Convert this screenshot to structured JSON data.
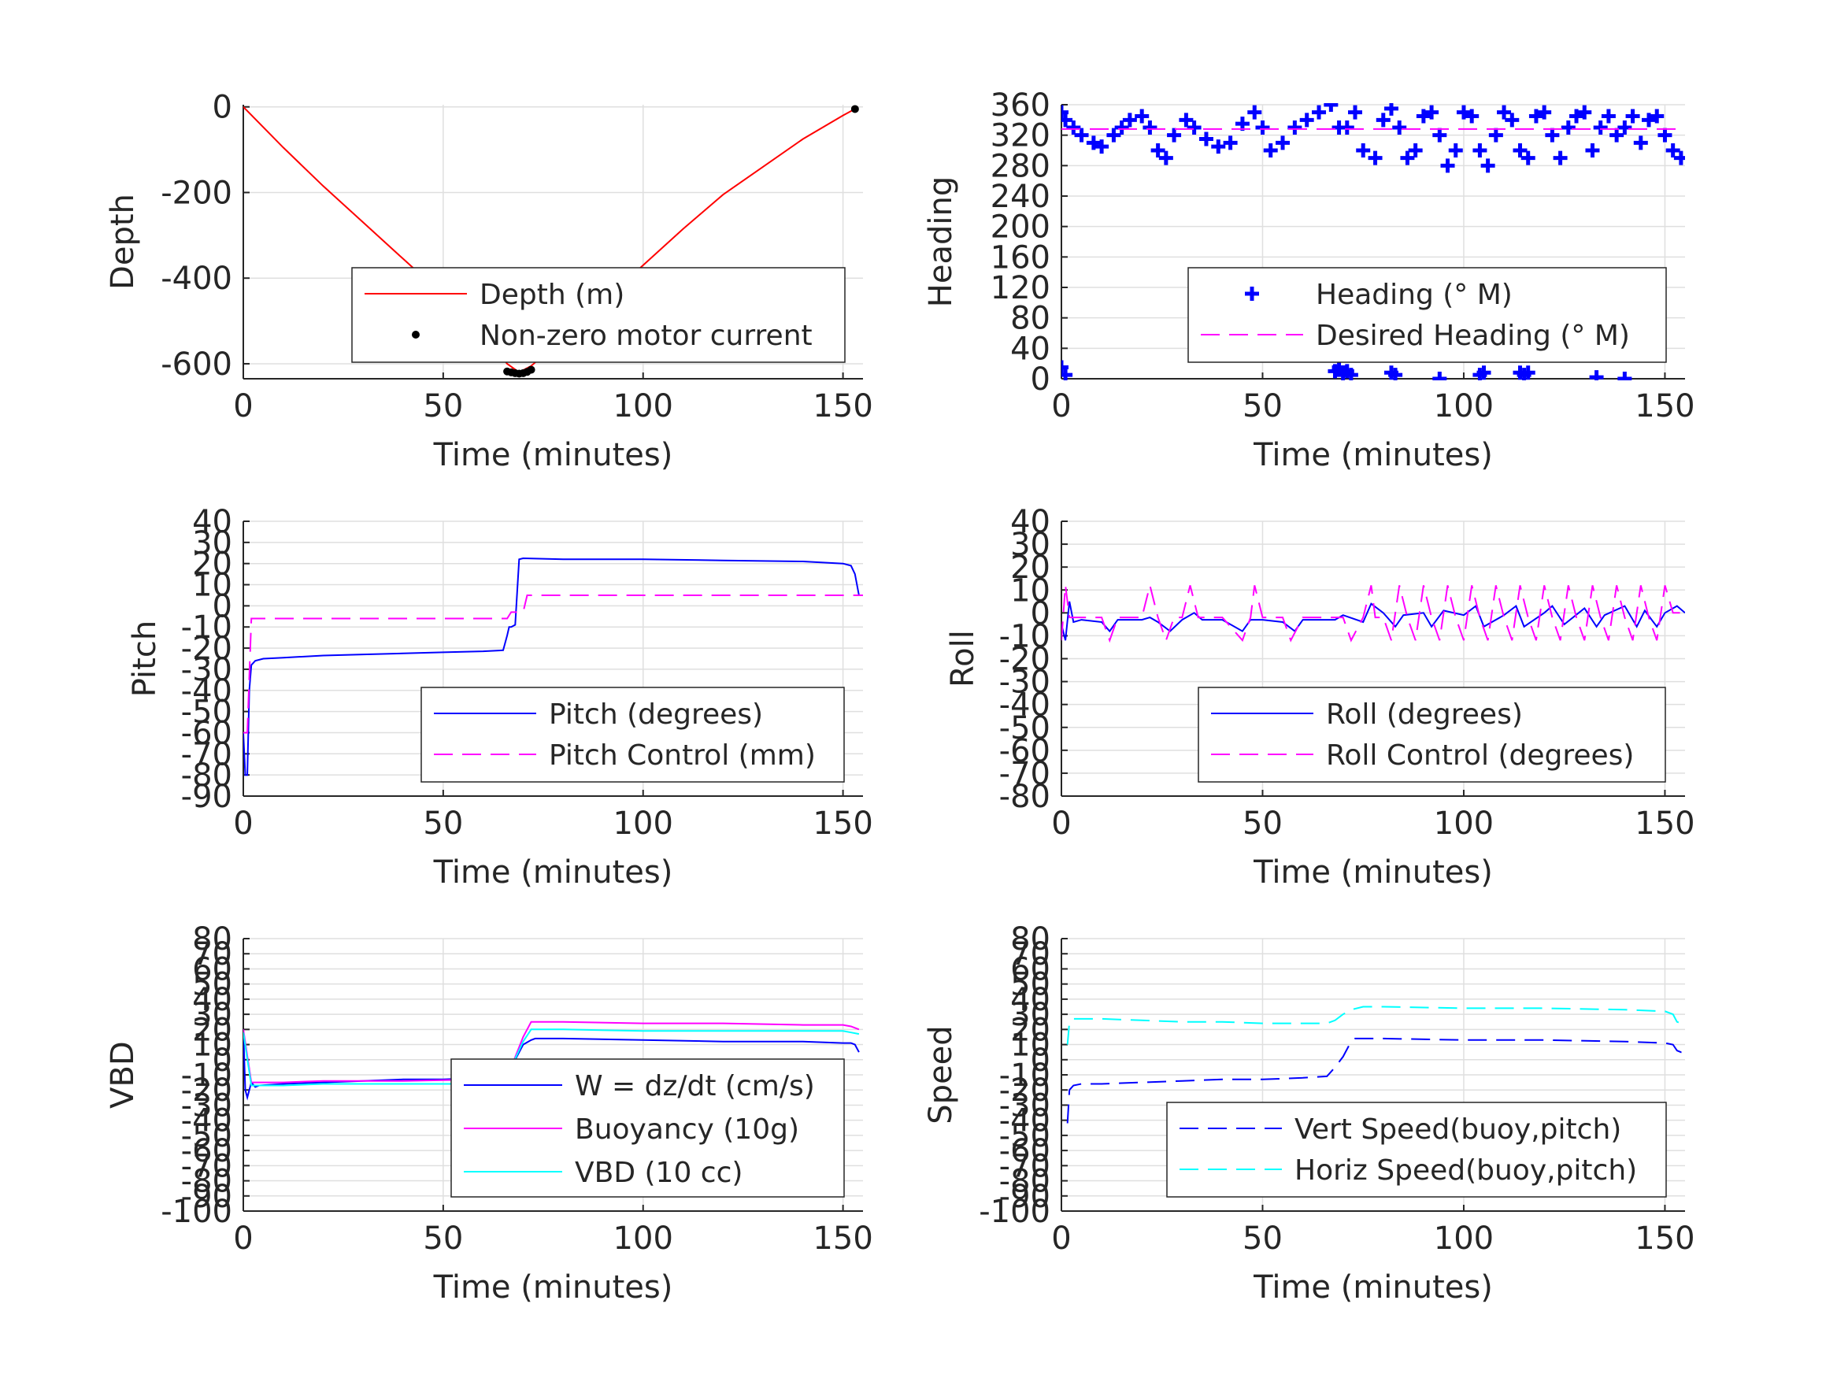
{
  "figure": {
    "background": "#ffffff"
  },
  "chart_data": [
    {
      "type": "line",
      "id": "depth",
      "ylabel": "Depth",
      "xlabel": "Time (minutes)",
      "xlim": [
        0,
        155
      ],
      "ylim": [
        -635,
        5
      ],
      "xticks": [
        0,
        50,
        100,
        150
      ],
      "yticks": [
        -600,
        -400,
        -200,
        0
      ],
      "grid": true,
      "legend_position": "lower-right",
      "series": [
        {
          "name": "Depth (m)",
          "style": "solid",
          "color": "#ff0000",
          "x": [
            0,
            10,
            20,
            30,
            40,
            50,
            60,
            66,
            69,
            72,
            80,
            90,
            100,
            110,
            120,
            130,
            140,
            150,
            153
          ],
          "y": [
            0,
            -95,
            -185,
            -270,
            -355,
            -440,
            -530,
            -600,
            -620,
            -605,
            -540,
            -455,
            -370,
            -285,
            -205,
            -140,
            -75,
            -20,
            -5
          ]
        },
        {
          "name": "Non-zero motor current",
          "style": "dots",
          "color": "#000000",
          "x": [
            66,
            67,
            68,
            69,
            70,
            71,
            72,
            153
          ],
          "y": [
            -618,
            -620,
            -622,
            -623,
            -622,
            -619,
            -614,
            -5
          ]
        }
      ]
    },
    {
      "type": "line",
      "id": "heading",
      "ylabel": "Heading",
      "xlabel": "Time (minutes)",
      "xlim": [
        0,
        155
      ],
      "ylim": [
        0,
        360
      ],
      "xticks": [
        0,
        50,
        100,
        150
      ],
      "yticks": [
        0,
        40,
        80,
        120,
        160,
        200,
        240,
        280,
        320,
        360
      ],
      "grid": true,
      "legend_position": "lower-right",
      "series": [
        {
          "name": "Heading (° M)",
          "style": "plus",
          "color": "#0000ff",
          "x": [
            0,
            1,
            3,
            5,
            8,
            10,
            13,
            15,
            17,
            20,
            22,
            24,
            26,
            28,
            31,
            33,
            36,
            39,
            42,
            45,
            48,
            50,
            52,
            55,
            58,
            61,
            64,
            67,
            69,
            71,
            73,
            75,
            78,
            80,
            82,
            84,
            86,
            88,
            90,
            92,
            94,
            96,
            98,
            100,
            102,
            104,
            106,
            108,
            110,
            112,
            114,
            116,
            118,
            120,
            122,
            124,
            126,
            128,
            130,
            132,
            134,
            136,
            138,
            140,
            142,
            144,
            146,
            148,
            150,
            152,
            154,
            0,
            1,
            68,
            69,
            70,
            71,
            72,
            82,
            83,
            94,
            104,
            105,
            114,
            115,
            116,
            133,
            140
          ],
          "y": [
            350,
            340,
            330,
            320,
            310,
            305,
            320,
            330,
            340,
            345,
            330,
            300,
            290,
            320,
            340,
            330,
            315,
            305,
            310,
            335,
            350,
            330,
            300,
            310,
            330,
            340,
            350,
            360,
            330,
            330,
            350,
            300,
            290,
            340,
            355,
            330,
            290,
            300,
            345,
            350,
            320,
            280,
            300,
            350,
            345,
            300,
            280,
            320,
            350,
            340,
            300,
            290,
            345,
            350,
            320,
            290,
            330,
            345,
            350,
            300,
            330,
            345,
            320,
            330,
            345,
            310,
            340,
            345,
            320,
            300,
            290,
            15,
            5,
            10,
            15,
            5,
            10,
            5,
            8,
            5,
            0,
            5,
            8,
            8,
            5,
            8,
            2,
            0
          ]
        },
        {
          "name": "Desired Heading (° M)",
          "style": "dashed",
          "color": "#ff00ff",
          "x": [
            0,
            155
          ],
          "y": [
            328,
            328
          ]
        }
      ]
    },
    {
      "type": "line",
      "id": "pitch",
      "ylabel": "Pitch",
      "xlabel": "Time (minutes)",
      "xlim": [
        0,
        155
      ],
      "ylim": [
        -90,
        40
      ],
      "xticks": [
        0,
        50,
        100,
        150
      ],
      "yticks": [
        -90,
        -80,
        -70,
        -60,
        -50,
        -40,
        -30,
        -20,
        -10,
        0,
        10,
        20,
        30,
        40
      ],
      "grid": true,
      "legend_position": "lower-right",
      "series": [
        {
          "name": "Pitch (degrees)",
          "style": "solid",
          "color": "#0000ff",
          "x": [
            0,
            0.5,
            1,
            1.5,
            2,
            3,
            5,
            10,
            20,
            30,
            40,
            50,
            60,
            65,
            66,
            66.5,
            67,
            68,
            69,
            70,
            80,
            100,
            120,
            140,
            150,
            152,
            153,
            154
          ],
          "y": [
            -60,
            -80,
            -80,
            -40,
            -28,
            -26,
            -25,
            -24.5,
            -23.5,
            -23,
            -22.5,
            -22,
            -21.5,
            -21,
            -14,
            -10,
            -10,
            -9,
            22,
            22.5,
            22,
            22,
            21.5,
            21,
            20,
            19,
            15,
            5
          ]
        },
        {
          "name": "Pitch Control (mm)",
          "style": "dashed",
          "color": "#ff00ff",
          "x": [
            0,
            1,
            2,
            3,
            66,
            67,
            68,
            70,
            71,
            155
          ],
          "y": [
            -60,
            -60,
            -6,
            -6,
            -6,
            -3,
            -3,
            -3,
            5,
            5
          ]
        }
      ]
    },
    {
      "type": "line",
      "id": "roll",
      "ylabel": "Roll",
      "xlabel": "Time (minutes)",
      "xlim": [
        0,
        155
      ],
      "ylim": [
        -80,
        40
      ],
      "xticks": [
        0,
        50,
        100,
        150
      ],
      "yticks": [
        -80,
        -70,
        -60,
        -50,
        -40,
        -30,
        -20,
        -10,
        0,
        10,
        20,
        30,
        40
      ],
      "grid": true,
      "legend_position": "lower-right",
      "series": [
        {
          "name": "Roll (degrees)",
          "style": "solid",
          "color": "#0000ff",
          "x": [
            0,
            1,
            2,
            3,
            5,
            10,
            12,
            14,
            20,
            22,
            24,
            27,
            30,
            33,
            35,
            40,
            45,
            47,
            50,
            55,
            58,
            60,
            65,
            68,
            70,
            75,
            77,
            80,
            83,
            85,
            90,
            92,
            95,
            100,
            103,
            105,
            110,
            113,
            115,
            120,
            122,
            125,
            130,
            133,
            135,
            140,
            143,
            145,
            148,
            150,
            153,
            155
          ],
          "y": [
            -5,
            -12,
            5,
            -4,
            -3,
            -4,
            -8,
            -3,
            -3,
            -2,
            -4,
            -8,
            -3,
            0,
            -3,
            -3,
            -8,
            -3,
            -3,
            -4,
            -8,
            -3,
            -3,
            -3,
            -1,
            -4,
            4,
            0,
            -6,
            -1,
            0,
            -6,
            1,
            -1,
            3,
            -6,
            -1,
            3,
            -6,
            0,
            3,
            -5,
            2,
            -6,
            -1,
            3,
            -6,
            1,
            -6,
            0,
            3,
            0
          ]
        },
        {
          "name": "Roll Control (degrees)",
          "style": "dashed",
          "color": "#ff00ff",
          "x": [
            0,
            1,
            2,
            3,
            5,
            10,
            12,
            14,
            20,
            22,
            24,
            26,
            28,
            30,
            32,
            34,
            40,
            45,
            47,
            48,
            50,
            55,
            57,
            60,
            65,
            70,
            72,
            75,
            77,
            78,
            80,
            82,
            84,
            86,
            88,
            90,
            92,
            94,
            96,
            98,
            100,
            102,
            104,
            106,
            108,
            110,
            112,
            114,
            116,
            118,
            120,
            122,
            124,
            126,
            128,
            130,
            132,
            134,
            136,
            138,
            140,
            142,
            144,
            146,
            148,
            150,
            152,
            155
          ],
          "y": [
            -12,
            12,
            -2,
            -2,
            -2,
            -2,
            -12,
            -2,
            -2,
            12,
            -2,
            -12,
            -2,
            -2,
            12,
            -2,
            -2,
            -12,
            -2,
            12,
            -2,
            -2,
            -12,
            -2,
            -2,
            -2,
            -12,
            -2,
            12,
            -2,
            -2,
            -12,
            12,
            -2,
            -12,
            12,
            -2,
            -12,
            12,
            -2,
            -12,
            12,
            -2,
            -12,
            12,
            -2,
            -12,
            12,
            -2,
            -12,
            12,
            -2,
            -12,
            12,
            -2,
            -12,
            12,
            -2,
            -12,
            12,
            -2,
            -12,
            12,
            -2,
            -12,
            12,
            0,
            0
          ]
        }
      ]
    },
    {
      "type": "line",
      "id": "vbd",
      "ylabel": "VBD",
      "xlabel": "Time (minutes)",
      "xlim": [
        0,
        155
      ],
      "ylim": [
        -100,
        80
      ],
      "xticks": [
        0,
        50,
        100,
        150
      ],
      "yticks": [
        -100,
        -90,
        -80,
        -70,
        -60,
        -50,
        -40,
        -30,
        -20,
        -10,
        0,
        10,
        20,
        30,
        40,
        50,
        60,
        70,
        80
      ],
      "grid": true,
      "legend_position": "lower-right",
      "series": [
        {
          "name": "W = dz/dt (cm/s)",
          "style": "solid",
          "color": "#0000ff",
          "x": [
            0,
            0.5,
            1,
            2,
            3,
            4,
            10,
            20,
            30,
            40,
            50,
            60,
            65,
            67,
            68,
            70,
            72,
            73,
            80,
            100,
            120,
            140,
            150,
            152,
            153,
            154
          ],
          "y": [
            20,
            -20,
            -25,
            -15,
            -18,
            -17,
            -16,
            -15,
            -14,
            -13,
            -13,
            -12,
            -12,
            -5,
            0,
            10,
            13,
            14,
            14,
            13,
            12,
            12,
            11,
            11,
            10,
            5
          ]
        },
        {
          "name": "Buoyancy (10g)",
          "style": "solid",
          "color": "#ff00ff",
          "x": [
            0,
            2,
            3,
            10,
            20,
            40,
            60,
            65,
            66,
            67,
            70,
            72,
            80,
            100,
            120,
            140,
            150,
            152,
            154
          ],
          "y": [
            20,
            -15,
            -15,
            -15,
            -14,
            -14,
            -13,
            -13,
            -10,
            -5,
            15,
            25,
            25,
            24,
            24,
            23,
            23,
            22,
            20
          ]
        },
        {
          "name": "VBD (10 cc)",
          "style": "solid",
          "color": "#00ffff",
          "x": [
            0,
            2,
            3,
            10,
            20,
            40,
            60,
            65,
            66,
            67,
            70,
            72,
            80,
            100,
            120,
            140,
            150,
            152,
            154
          ],
          "y": [
            18,
            -17,
            -17,
            -17,
            -16,
            -16,
            -16,
            -16,
            -10,
            -5,
            12,
            20,
            20,
            19,
            19,
            19,
            19,
            18,
            17
          ]
        }
      ]
    },
    {
      "type": "line",
      "id": "speed",
      "ylabel": "Speed",
      "xlabel": "Time (minutes)",
      "xlim": [
        0,
        155
      ],
      "ylim": [
        -100,
        80
      ],
      "xticks": [
        0,
        50,
        100,
        150
      ],
      "yticks": [
        -100,
        -90,
        -80,
        -70,
        -60,
        -50,
        -40,
        -30,
        -20,
        -10,
        0,
        10,
        20,
        30,
        40,
        50,
        60,
        70,
        80
      ],
      "grid": true,
      "legend_position": "lower-right",
      "series": [
        {
          "name": "Vert Speed(buoy,pitch)",
          "style": "dashed",
          "color": "#0000ff",
          "x": [
            1.5,
            2,
            3,
            5,
            10,
            20,
            30,
            40,
            50,
            60,
            66,
            68,
            70,
            72,
            73,
            80,
            100,
            120,
            140,
            150,
            152,
            153,
            154,
            155
          ],
          "y": [
            -42,
            -20,
            -17,
            -16,
            -16,
            -15,
            -14,
            -13,
            -13,
            -12,
            -11,
            -5,
            2,
            12,
            14,
            14,
            13,
            13,
            12,
            11,
            10,
            6,
            5,
            5
          ]
        },
        {
          "name": "Horiz Speed(buoy,pitch)",
          "style": "dashed",
          "color": "#00ffff",
          "x": [
            1.5,
            2,
            3,
            5,
            10,
            20,
            30,
            40,
            50,
            60,
            66,
            68,
            70,
            72,
            75,
            80,
            100,
            120,
            140,
            150,
            152,
            153,
            154
          ],
          "y": [
            10,
            25,
            27,
            27,
            27,
            26,
            25,
            25,
            24,
            24,
            24,
            26,
            30,
            33,
            35,
            35,
            34,
            34,
            33,
            32,
            30,
            25,
            24
          ]
        }
      ]
    }
  ]
}
